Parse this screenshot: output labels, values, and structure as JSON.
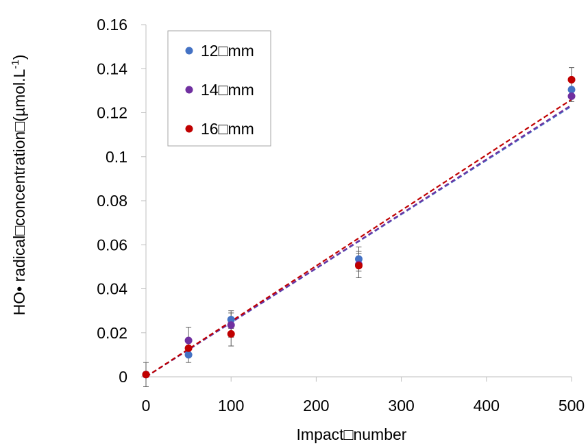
{
  "chart_data": {
    "type": "scatter",
    "xlabel": "Impact□number",
    "ylabel": "HO• radical□concentration□(µmol.L",
    "ylabel_sup": "-1",
    "ylabel_close": ")",
    "xlim": [
      0,
      500
    ],
    "ylim": [
      0,
      0.16
    ],
    "xticks": [
      0,
      100,
      200,
      300,
      400,
      500
    ],
    "xtick_labels": [
      "0",
      "100",
      "200",
      "300",
      "400",
      "500"
    ],
    "yticks": [
      0,
      0.02,
      0.04,
      0.06,
      0.08,
      0.1,
      0.12,
      0.14,
      0.16
    ],
    "ytick_labels": [
      "0",
      "0.02",
      "0.04",
      "0.06",
      "0.08",
      "0.1",
      "0.12",
      "0.14",
      "0.16"
    ],
    "grid": false,
    "legend_position": "top-left",
    "x": [
      0,
      50,
      100,
      250,
      500
    ],
    "series": [
      {
        "name": "12□mm",
        "color": "#4472C4",
        "values": [
          0.001,
          0.01,
          0.026,
          0.0535,
          0.1305
        ],
        "errors": [
          0.0055,
          0.0035,
          0.004,
          0.0055,
          0.0035
        ],
        "trend": [
          0,
          0.123
        ]
      },
      {
        "name": "14□mm",
        "color": "#7030A0",
        "values": [
          0.001,
          0.0165,
          0.0235,
          0.051,
          0.1275
        ],
        "errors": [
          0.001,
          0.006,
          0.0055,
          0.006,
          0.0025
        ],
        "trend": [
          0,
          0.1235
        ]
      },
      {
        "name": "16□mm",
        "color": "#C00000",
        "values": [
          0.001,
          0.013,
          0.0195,
          0.0505,
          0.135
        ],
        "errors": [
          0.001,
          0.0035,
          0.0055,
          0.0055,
          0.0055
        ],
        "trend": [
          0,
          0.126
        ]
      }
    ]
  }
}
